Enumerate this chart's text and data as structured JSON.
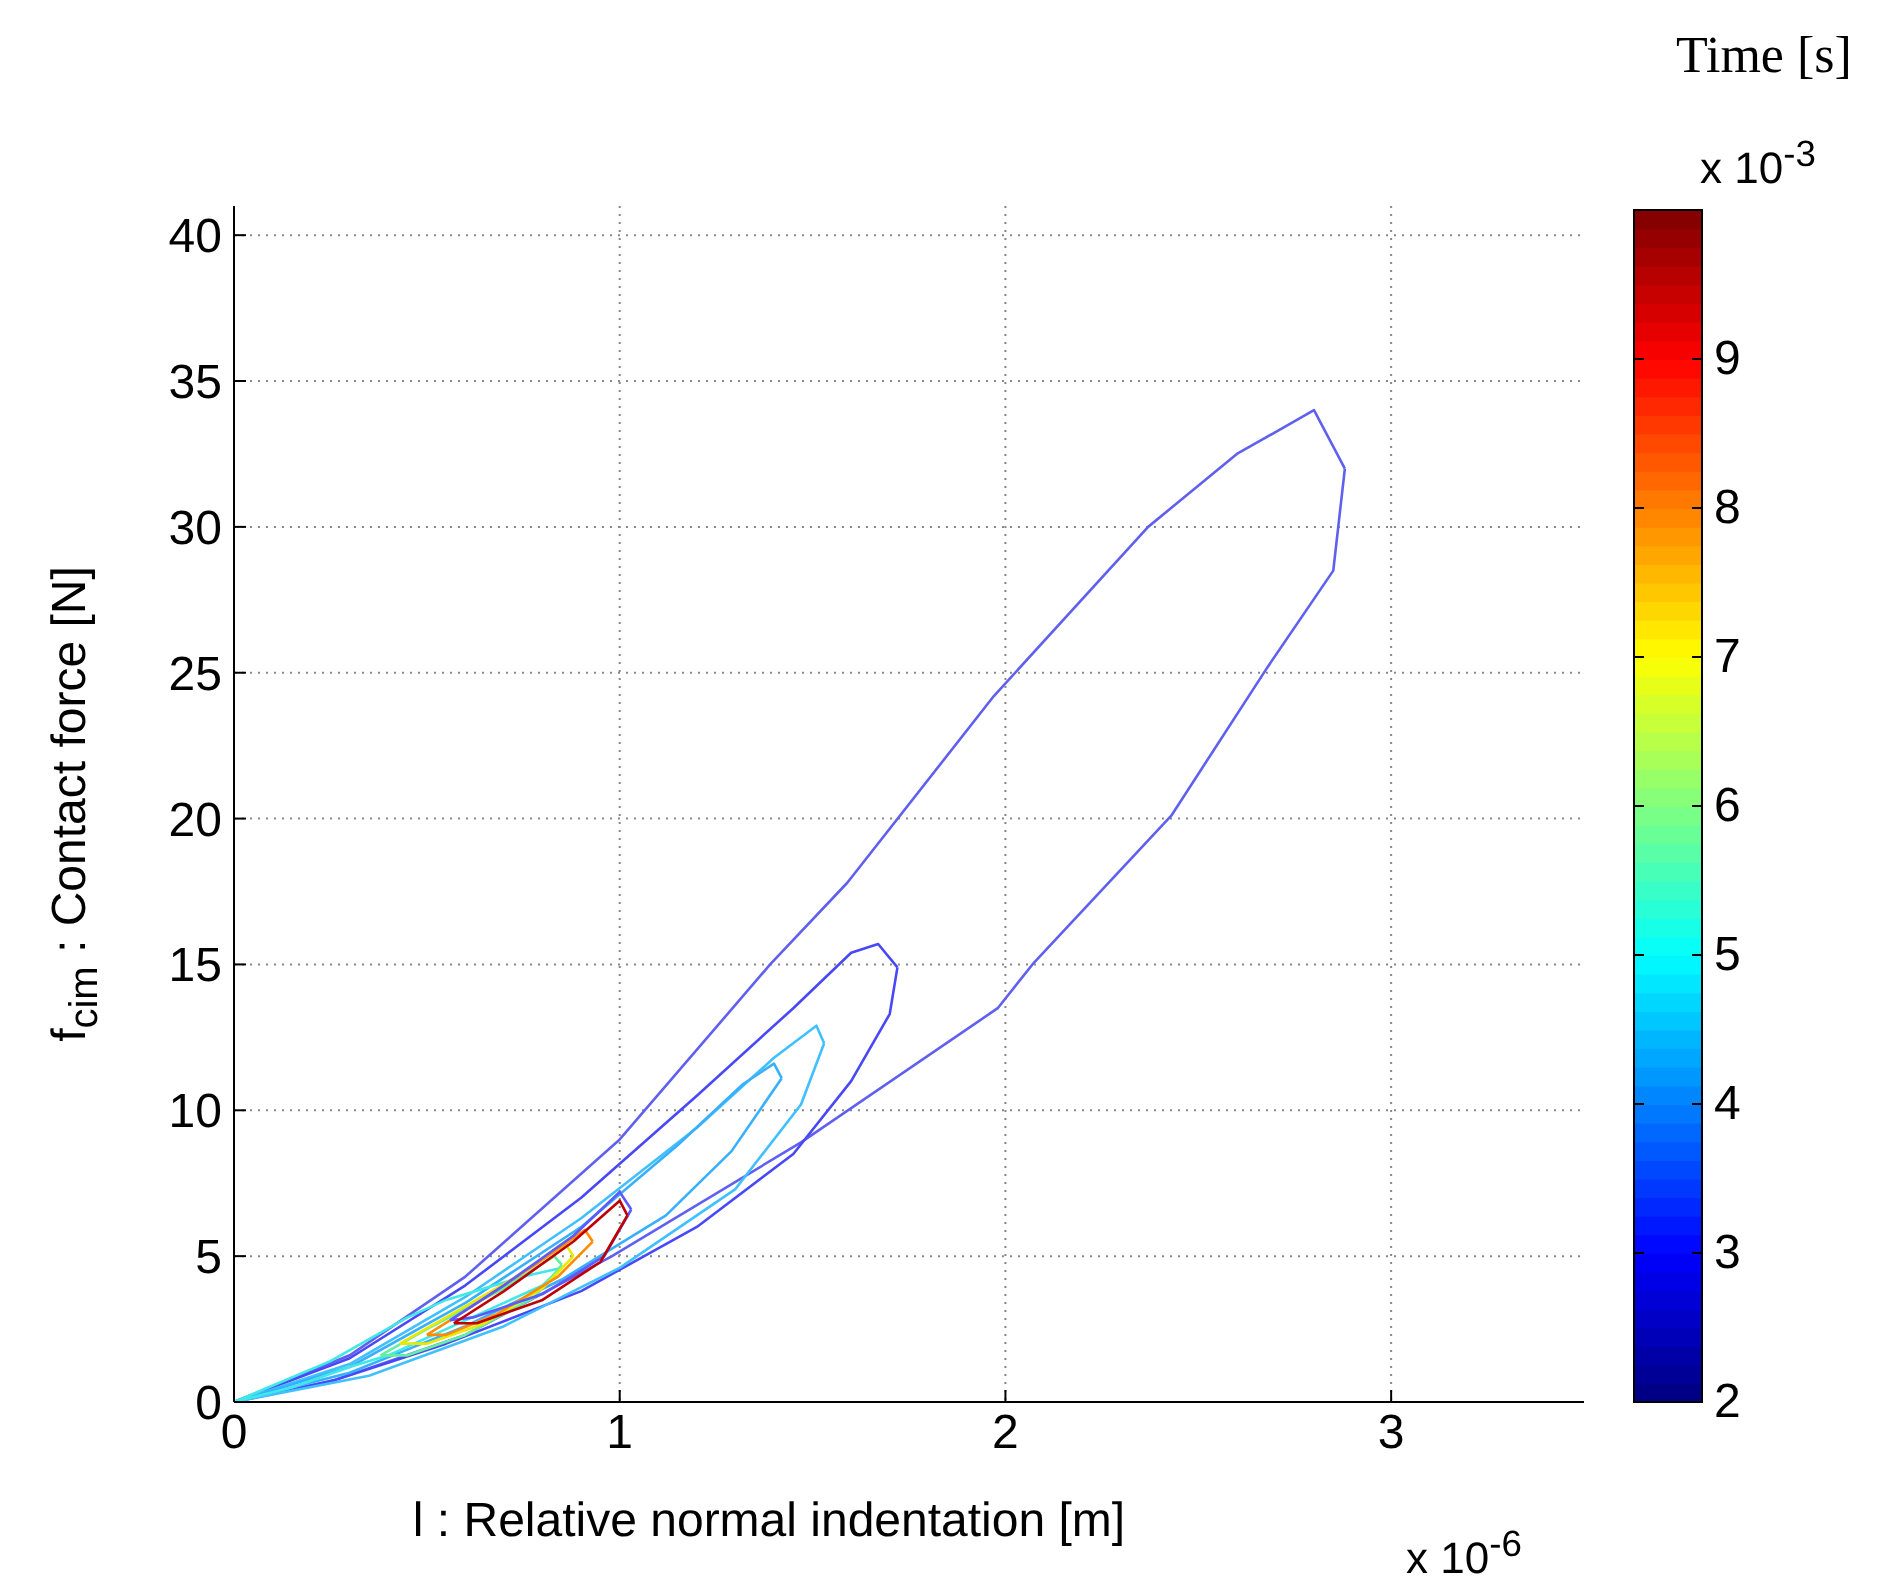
{
  "chart_data": {
    "type": "line",
    "xlabel": "l : Relative normal indentation [m]",
    "ylabel": "f$_{cim}$ : Contact force [N]",
    "clabel": "Time [s]",
    "annotations": [
      "x 10$^{-6}$",
      "x 10$^{-3}$"
    ],
    "xlim": [
      0,
      3.5
    ],
    "xticks": [
      0,
      1,
      2,
      3
    ],
    "ylim": [
      0,
      41
    ],
    "yticks": [
      0,
      5,
      10,
      15,
      20,
      25,
      30,
      35,
      40
    ],
    "clim": [
      2,
      10
    ],
    "cticks": [
      2,
      3,
      4,
      5,
      6,
      7,
      8,
      9
    ],
    "grid": true,
    "legend": false,
    "marker": "none",
    "series": [
      {
        "color": "#6060f0",
        "x": [
          0,
          0.3,
          0.6,
          1.0,
          1.39,
          1.59,
          1.97,
          2.37,
          2.6,
          2.8,
          2.88
        ],
        "values": [
          0,
          1.6,
          4.3,
          9.0,
          15.0,
          17.8,
          24.2,
          30.0,
          32.5,
          34.0,
          32.0
        ]
      },
      {
        "color": "#6060f0",
        "x": [
          0,
          0.26,
          0.6,
          0.98,
          1.47,
          1.98,
          2.07,
          2.43,
          2.68,
          2.85,
          2.88
        ],
        "values": [
          0,
          0.75,
          2.3,
          5.0,
          8.9,
          13.5,
          15.0,
          20.1,
          25.2,
          28.5,
          32.0
        ]
      },
      {
        "color": "#4848f8",
        "x": [
          0,
          0.3,
          0.6,
          0.9,
          1.2,
          1.45,
          1.6,
          1.67,
          1.72
        ],
        "values": [
          0,
          1.5,
          4.0,
          7.0,
          10.5,
          13.5,
          15.4,
          15.7,
          14.9
        ]
      },
      {
        "color": "#4848f8",
        "x": [
          0,
          0.25,
          0.55,
          0.9,
          1.2,
          1.45,
          1.6,
          1.7,
          1.72
        ],
        "values": [
          0,
          0.7,
          2.0,
          3.8,
          6.0,
          8.5,
          11.0,
          13.3,
          14.9
        ]
      },
      {
        "color": "#40c0ff",
        "x": [
          0,
          0.3,
          0.6,
          0.9,
          1.2,
          1.4,
          1.51,
          1.53
        ],
        "values": [
          0,
          1.3,
          3.6,
          6.3,
          9.4,
          11.8,
          12.9,
          12.3
        ]
      },
      {
        "color": "#40c0ff",
        "x": [
          0,
          0.35,
          0.7,
          1.0,
          1.3,
          1.47,
          1.53
        ],
        "values": [
          0,
          0.9,
          2.6,
          4.6,
          7.3,
          10.2,
          12.3
        ]
      },
      {
        "color": "#38b0ff",
        "x": [
          0,
          0.3,
          0.6,
          0.9,
          1.15,
          1.32,
          1.4,
          1.42
        ],
        "values": [
          0,
          1.2,
          3.4,
          6.0,
          8.8,
          10.9,
          11.6,
          11.1
        ]
      },
      {
        "color": "#38b0ff",
        "x": [
          0,
          0.3,
          0.6,
          0.85,
          1.12,
          1.29,
          1.42
        ],
        "values": [
          0,
          1.0,
          2.6,
          4.2,
          6.4,
          8.6,
          11.1
        ]
      },
      {
        "color": "#40e8e8",
        "x": [
          0,
          0.25,
          0.45,
          0.55,
          0.75,
          0.85
        ],
        "values": [
          0,
          1.4,
          2.9,
          3.5,
          4.3,
          4.6
        ]
      },
      {
        "color": "#40e8e8",
        "x": [
          0,
          0.15,
          0.3,
          0.4,
          0.6,
          0.8,
          0.85
        ],
        "values": [
          0,
          0.5,
          1.2,
          1.6,
          2.8,
          4.0,
          4.6
        ]
      },
      {
        "color": "#60f0a0",
        "x": [
          0.38,
          0.5,
          0.7,
          0.83,
          0.85
        ],
        "values": [
          1.6,
          2.5,
          3.9,
          5.0,
          4.7
        ]
      },
      {
        "color": "#60f0a0",
        "x": [
          0.38,
          0.45,
          0.6,
          0.78,
          0.85
        ],
        "values": [
          1.6,
          1.6,
          2.3,
          3.6,
          4.7
        ]
      },
      {
        "color": "#e8e800",
        "x": [
          0.43,
          0.55,
          0.72,
          0.86,
          0.88
        ],
        "values": [
          2.0,
          2.9,
          4.2,
          5.4,
          5.0
        ]
      },
      {
        "color": "#e8e800",
        "x": [
          0.43,
          0.5,
          0.65,
          0.8,
          0.88
        ],
        "values": [
          2.0,
          2.0,
          2.7,
          3.9,
          5.0
        ]
      },
      {
        "color": "#ff8c00",
        "x": [
          0.5,
          0.62,
          0.78,
          0.91,
          0.93
        ],
        "values": [
          2.3,
          3.3,
          4.7,
          5.9,
          5.5
        ]
      },
      {
        "color": "#ff8c00",
        "x": [
          0.5,
          0.55,
          0.68,
          0.84,
          0.93
        ],
        "values": [
          2.3,
          2.3,
          3.0,
          4.3,
          5.5
        ]
      },
      {
        "color": "#5a5aff",
        "x": [
          0.56,
          0.7,
          0.88,
          1.0,
          1.03
        ],
        "values": [
          2.8,
          4.0,
          5.7,
          7.2,
          6.6
        ]
      },
      {
        "color": "#5a5aff",
        "x": [
          0.56,
          0.62,
          0.8,
          0.96,
          1.03
        ],
        "values": [
          2.8,
          2.9,
          3.7,
          5.0,
          6.6
        ]
      },
      {
        "color": "#c00000",
        "x": [
          0.57,
          0.7,
          0.88,
          1.0,
          1.02
        ],
        "values": [
          2.7,
          3.8,
          5.5,
          6.9,
          6.4
        ]
      },
      {
        "color": "#c00000",
        "x": [
          0.57,
          0.63,
          0.8,
          0.95,
          1.02
        ],
        "values": [
          2.7,
          2.7,
          3.5,
          4.8,
          6.4
        ]
      }
    ]
  }
}
